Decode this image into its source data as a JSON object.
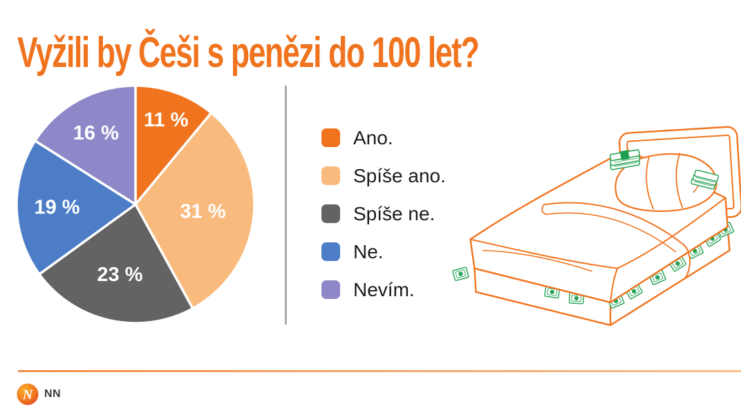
{
  "title": "Vyžili by Češi s penězi do 100 let?",
  "chart_data": {
    "type": "pie",
    "title": "Vyžili by Češi s penězi do 100 let?",
    "categories": [
      "Ano.",
      "Spíše ano.",
      "Spíše ne.",
      "Ne.",
      "Nevím."
    ],
    "values": [
      11,
      31,
      23,
      19,
      16
    ],
    "unit": "%",
    "slice_labels": [
      "11 %",
      "31 %",
      "23 %",
      "19 %",
      "16 %"
    ],
    "slice_label_format": "{value} %",
    "colors": [
      "#F0731E",
      "#F9BA7D",
      "#636363",
      "#4C7DC6",
      "#8E87C8"
    ],
    "slice_label_color": "#FFFFFF",
    "start_angle_deg": 0,
    "direction": "clockwise",
    "legend_position": "right"
  },
  "footer": {
    "logo_monogram": "N",
    "logo_text": "NN"
  },
  "colors": {
    "title": "#F0741F",
    "divider": "#A9A9A9",
    "bed_outline": "#F0741F",
    "money_green": "#1FA050",
    "legend_text": "#1B1B1B",
    "background": "#FFFFFF"
  }
}
